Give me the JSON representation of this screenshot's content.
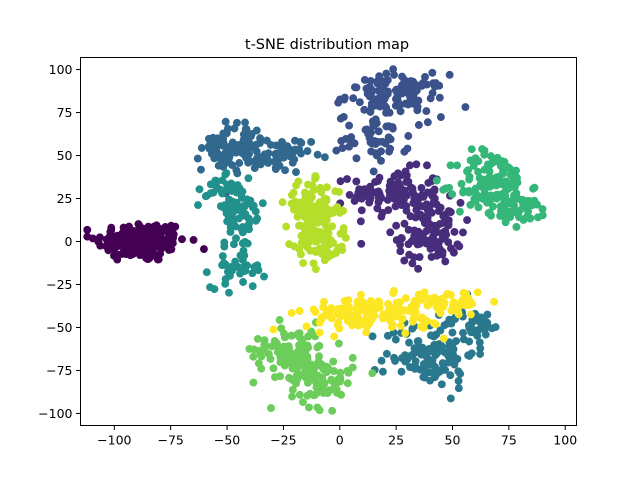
{
  "chart_data": {
    "type": "scatter",
    "title": "t-SNE distribution map",
    "xlabel": "",
    "ylabel": "",
    "xlim": [
      -115,
      105
    ],
    "ylim": [
      -107,
      107
    ],
    "x_ticks": [
      -100,
      -75,
      -50,
      -25,
      0,
      25,
      50,
      75,
      100
    ],
    "y_ticks": [
      -100,
      -75,
      -50,
      -25,
      0,
      25,
      50,
      75,
      100
    ],
    "grid": false,
    "legend": "none",
    "clusters": [
      {
        "color": "#440154",
        "center": [
          -88,
          0
        ],
        "spread": [
          10,
          6
        ],
        "count": 170,
        "label_hint": "left cluster"
      },
      {
        "color": "#472d7b",
        "center": [
          25,
          28
        ],
        "spread": [
          10,
          7
        ],
        "count": 110
      },
      {
        "color": "#472d7b",
        "center": [
          40,
          5
        ],
        "spread": [
          7,
          9
        ],
        "count": 100
      },
      {
        "color": "#3b528b",
        "center": [
          25,
          85
        ],
        "spread": [
          11,
          6
        ],
        "count": 120
      },
      {
        "color": "#3b528b",
        "center": [
          15,
          60
        ],
        "spread": [
          8,
          7
        ],
        "count": 50
      },
      {
        "color": "#31688e",
        "center": [
          -47,
          55
        ],
        "spread": [
          7,
          7
        ],
        "count": 80
      },
      {
        "color": "#31688e",
        "center": [
          -27,
          50
        ],
        "spread": [
          7,
          5
        ],
        "count": 50
      },
      {
        "color": "#21918c",
        "center": [
          -45,
          15
        ],
        "spread": [
          6,
          10
        ],
        "count": 60
      },
      {
        "color": "#21918c",
        "center": [
          -45,
          -15
        ],
        "spread": [
          6,
          6
        ],
        "count": 40
      },
      {
        "color": "#21918c",
        "center": [
          -55,
          30
        ],
        "spread": [
          5,
          4
        ],
        "count": 20
      },
      {
        "color": "#2a788e",
        "center": [
          40,
          -65
        ],
        "spread": [
          10,
          10
        ],
        "count": 110
      },
      {
        "color": "#2a788e",
        "center": [
          60,
          -48
        ],
        "spread": [
          7,
          4
        ],
        "count": 40
      },
      {
        "color": "#35b779",
        "center": [
          68,
          33
        ],
        "spread": [
          8,
          10
        ],
        "count": 140
      },
      {
        "color": "#35b779",
        "center": [
          82,
          17
        ],
        "spread": [
          6,
          4
        ],
        "count": 30
      },
      {
        "color": "#6ccd5a",
        "center": [
          -22,
          -63
        ],
        "spread": [
          8,
          8
        ],
        "count": 90
      },
      {
        "color": "#6ccd5a",
        "center": [
          -8,
          -80
        ],
        "spread": [
          7,
          8
        ],
        "count": 80
      },
      {
        "color": "#b5de2b",
        "center": [
          -12,
          18
        ],
        "spread": [
          6,
          8
        ],
        "count": 110
      },
      {
        "color": "#b5de2b",
        "center": [
          -8,
          -2
        ],
        "spread": [
          6,
          6
        ],
        "count": 60
      },
      {
        "color": "#fde725",
        "center": [
          15,
          -42
        ],
        "spread": [
          15,
          5
        ],
        "count": 150
      },
      {
        "color": "#fde725",
        "center": [
          48,
          -35
        ],
        "spread": [
          8,
          3
        ],
        "count": 40
      }
    ]
  }
}
